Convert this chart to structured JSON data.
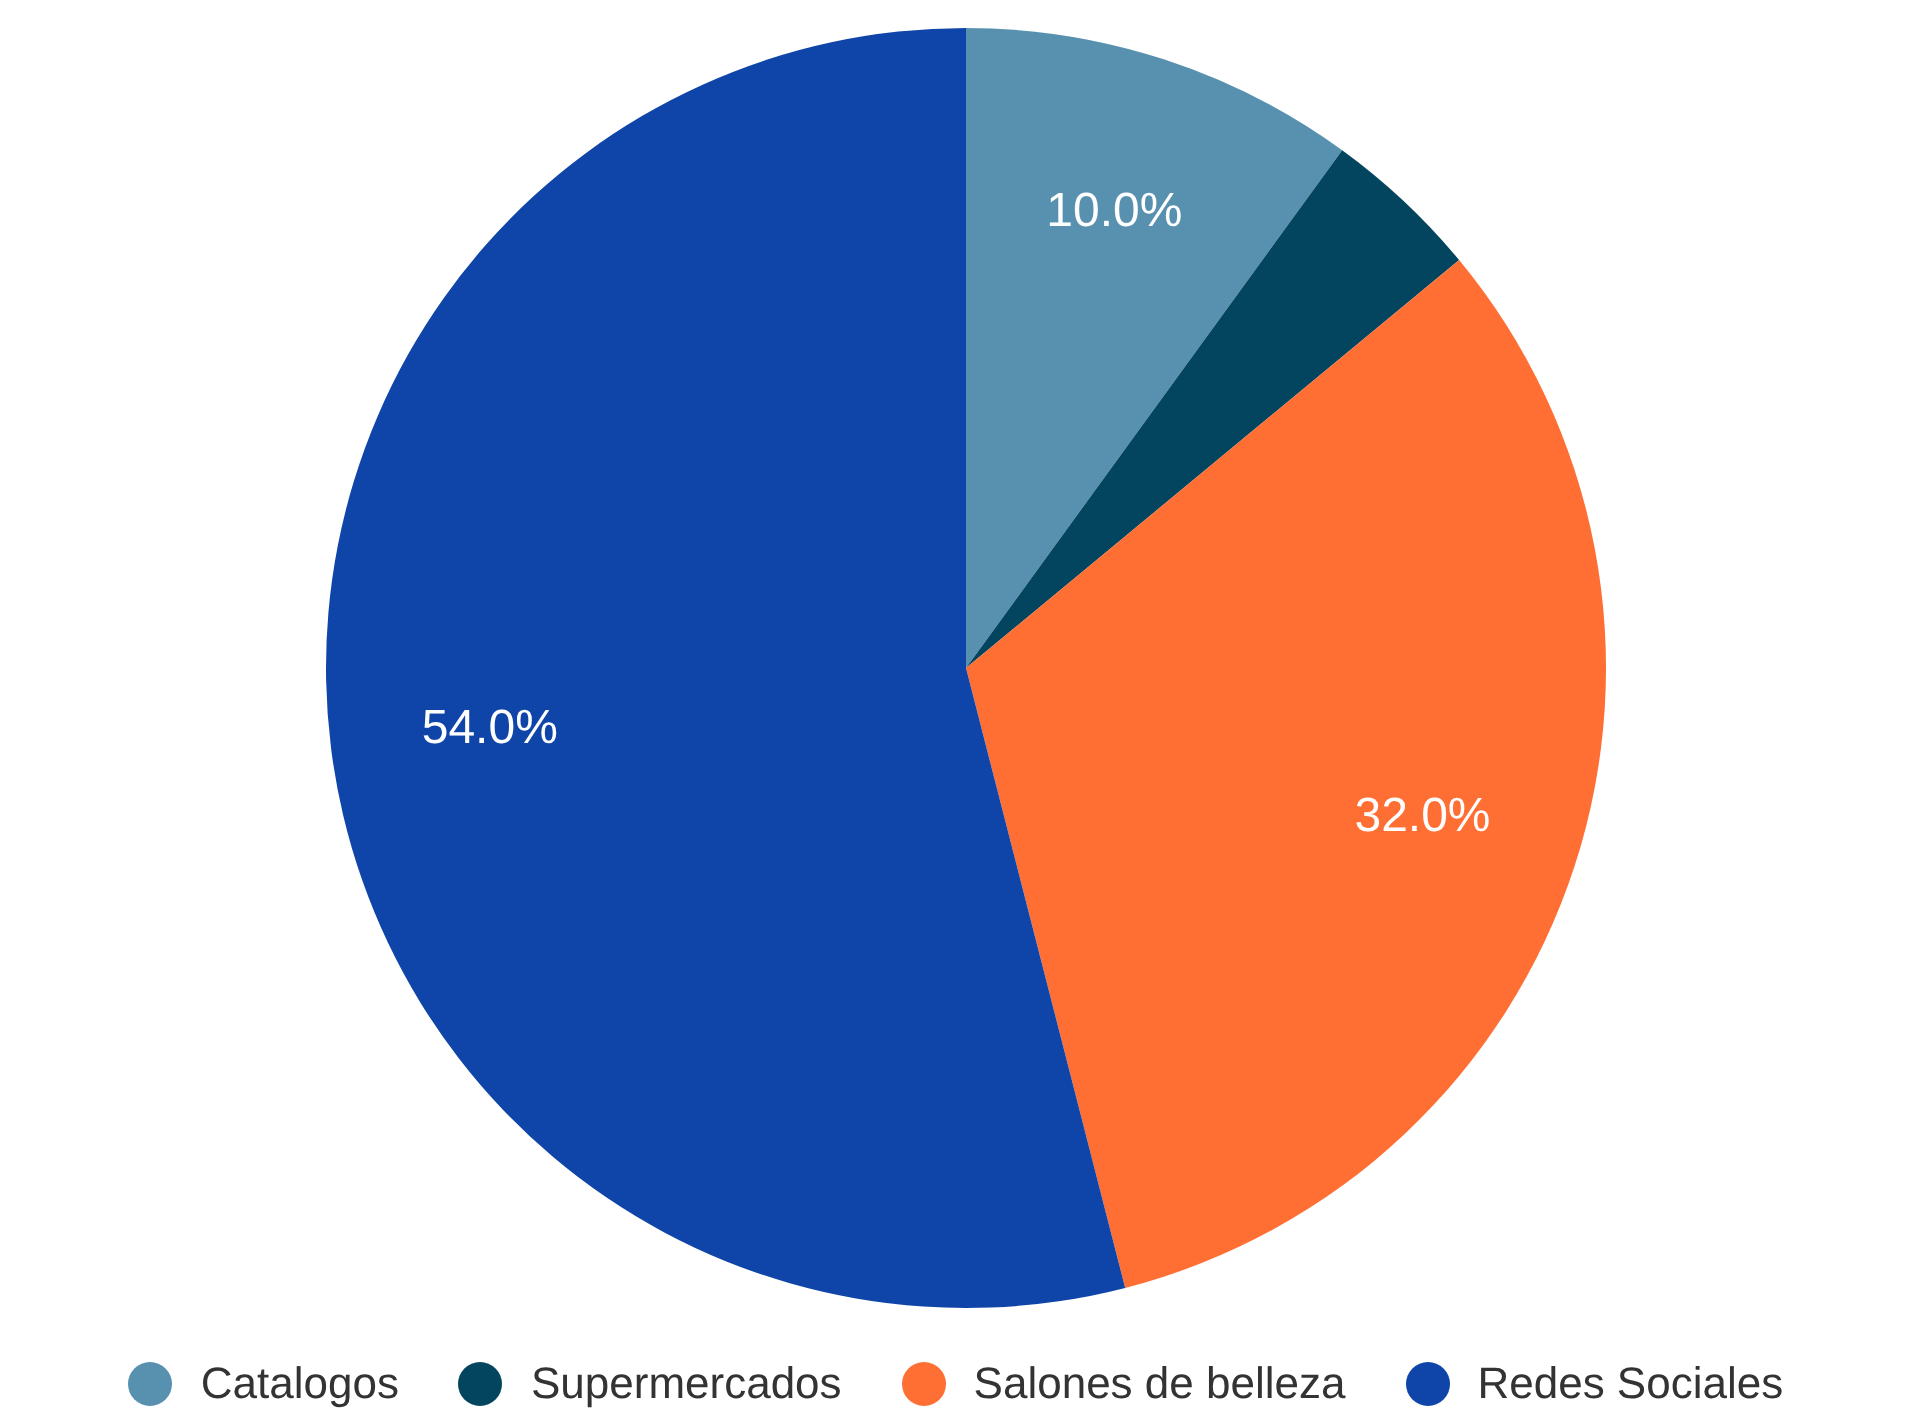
{
  "chart_data": {
    "type": "pie",
    "categories": [
      "Catalogos",
      "Supermercados",
      "Salones de belleza",
      "Redes Sociales"
    ],
    "values": [
      10,
      4,
      32,
      54
    ],
    "colors": [
      "#5891b0",
      "#03455f",
      "#ff6e33",
      "#0f44a8"
    ],
    "value_labels": [
      "10.0%",
      null,
      "32.0%",
      "54.0%"
    ],
    "legend": "bottom"
  }
}
